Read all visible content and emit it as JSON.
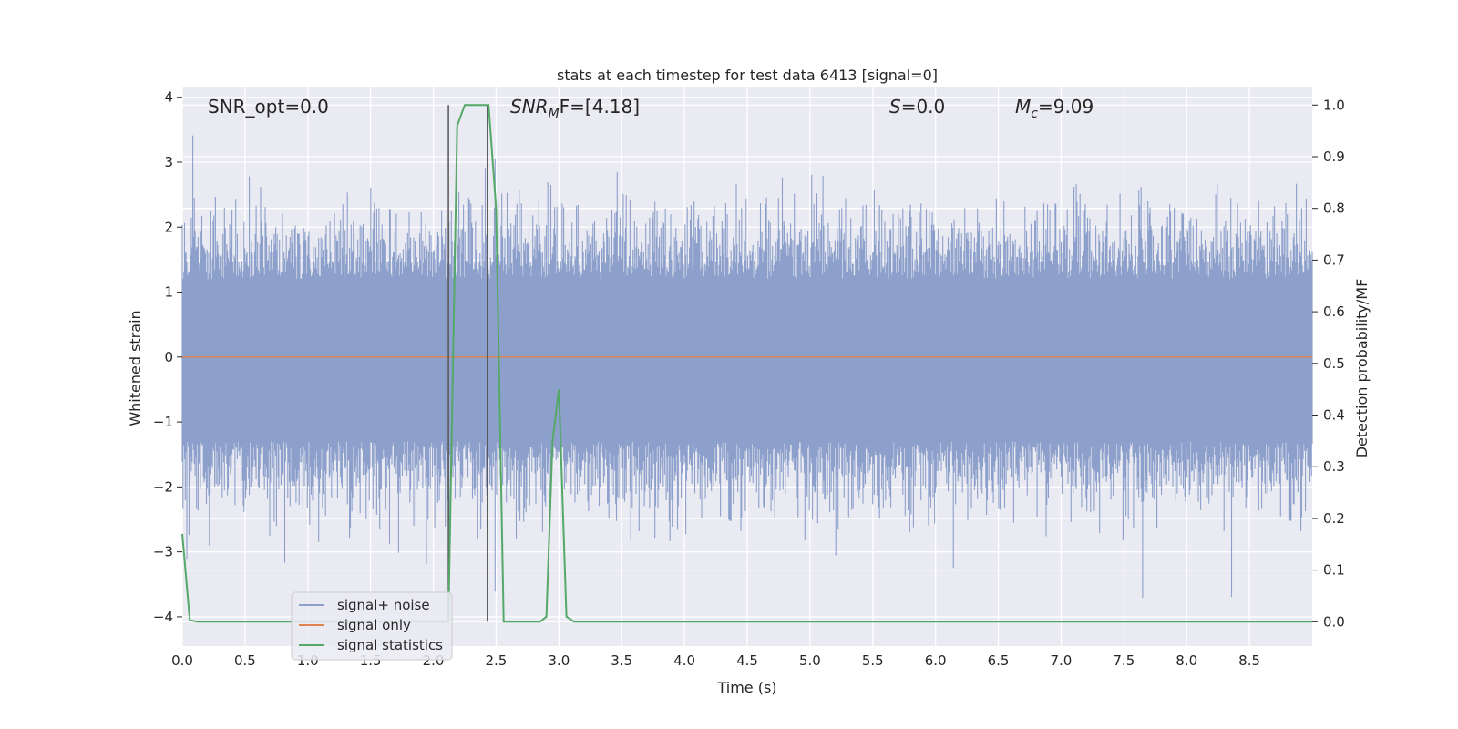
{
  "chart_data": {
    "type": "line",
    "title": "stats at each timestep for test data 6413 [signal=0]",
    "xlabel": "Time (s)",
    "ylabel": "Whitened strain",
    "y2label": "Detection probability/MF",
    "xlim": [
      0.0,
      9.0
    ],
    "ylim": [
      -4.45,
      4.15
    ],
    "y2lim": [
      -0.047,
      1.034
    ],
    "xticks": [
      0.0,
      0.5,
      1.0,
      1.5,
      2.0,
      2.5,
      3.0,
      3.5,
      4.0,
      4.5,
      5.0,
      5.5,
      6.0,
      6.5,
      7.0,
      7.5,
      8.0,
      8.5
    ],
    "xtick_labels": [
      "0.0",
      "0.5",
      "1.0",
      "1.5",
      "2.0",
      "2.5",
      "3.0",
      "3.5",
      "4.0",
      "4.5",
      "5.0",
      "5.5",
      "6.0",
      "6.5",
      "7.0",
      "7.5",
      "8.0",
      "8.5"
    ],
    "yticks": [
      -4,
      -3,
      -2,
      -1,
      0,
      1,
      2,
      3,
      4
    ],
    "ytick_labels": [
      "−4",
      "−3",
      "−2",
      "−1",
      "0",
      "1",
      "2",
      "3",
      "4"
    ],
    "y2ticks": [
      0.0,
      0.1,
      0.2,
      0.3,
      0.4,
      0.5,
      0.6,
      0.7,
      0.8,
      0.9,
      1.0
    ],
    "y2tick_labels": [
      "0.0",
      "0.1",
      "0.2",
      "0.3",
      "0.4",
      "0.5",
      "0.6",
      "0.7",
      "0.8",
      "0.9",
      "1.0"
    ],
    "grid": true,
    "legend_position": "lower-left",
    "annotations": {
      "snr_opt": "SNR_opt=0.0",
      "snr_mf_base": "SNR",
      "snr_mf_sub": "M",
      "snr_mf_rest": "F=[4.18]",
      "s_base": "S",
      "s_rest": "=0.0",
      "mc_base": "M",
      "mc_sub": "c",
      "mc_rest": "=9.09"
    },
    "vlines": [
      2.12,
      2.43
    ],
    "series": [
      {
        "name": "signal+ noise",
        "color": "#8da0cb",
        "axis": "left",
        "description_range": [
          -4.0,
          3.8
        ],
        "x_range": [
          0.0,
          9.0
        ]
      },
      {
        "name": "signal only",
        "color": "#dd8452",
        "axis": "left",
        "x": [
          0.0,
          9.0
        ],
        "y": [
          0.0,
          0.0
        ]
      },
      {
        "name": "signal statistics",
        "color": "#55a868",
        "axis": "right",
        "x": [
          0.0,
          0.06,
          0.12,
          2.12,
          2.19,
          2.25,
          2.44,
          2.5,
          2.56,
          2.85,
          2.9,
          2.95,
          3.0,
          3.06,
          3.12,
          9.0
        ],
        "y": [
          0.17,
          0.003,
          0.0,
          0.0,
          0.96,
          1.0,
          1.0,
          0.8,
          0.0,
          0.0,
          0.01,
          0.35,
          0.45,
          0.01,
          0.0,
          0.0
        ]
      }
    ]
  }
}
